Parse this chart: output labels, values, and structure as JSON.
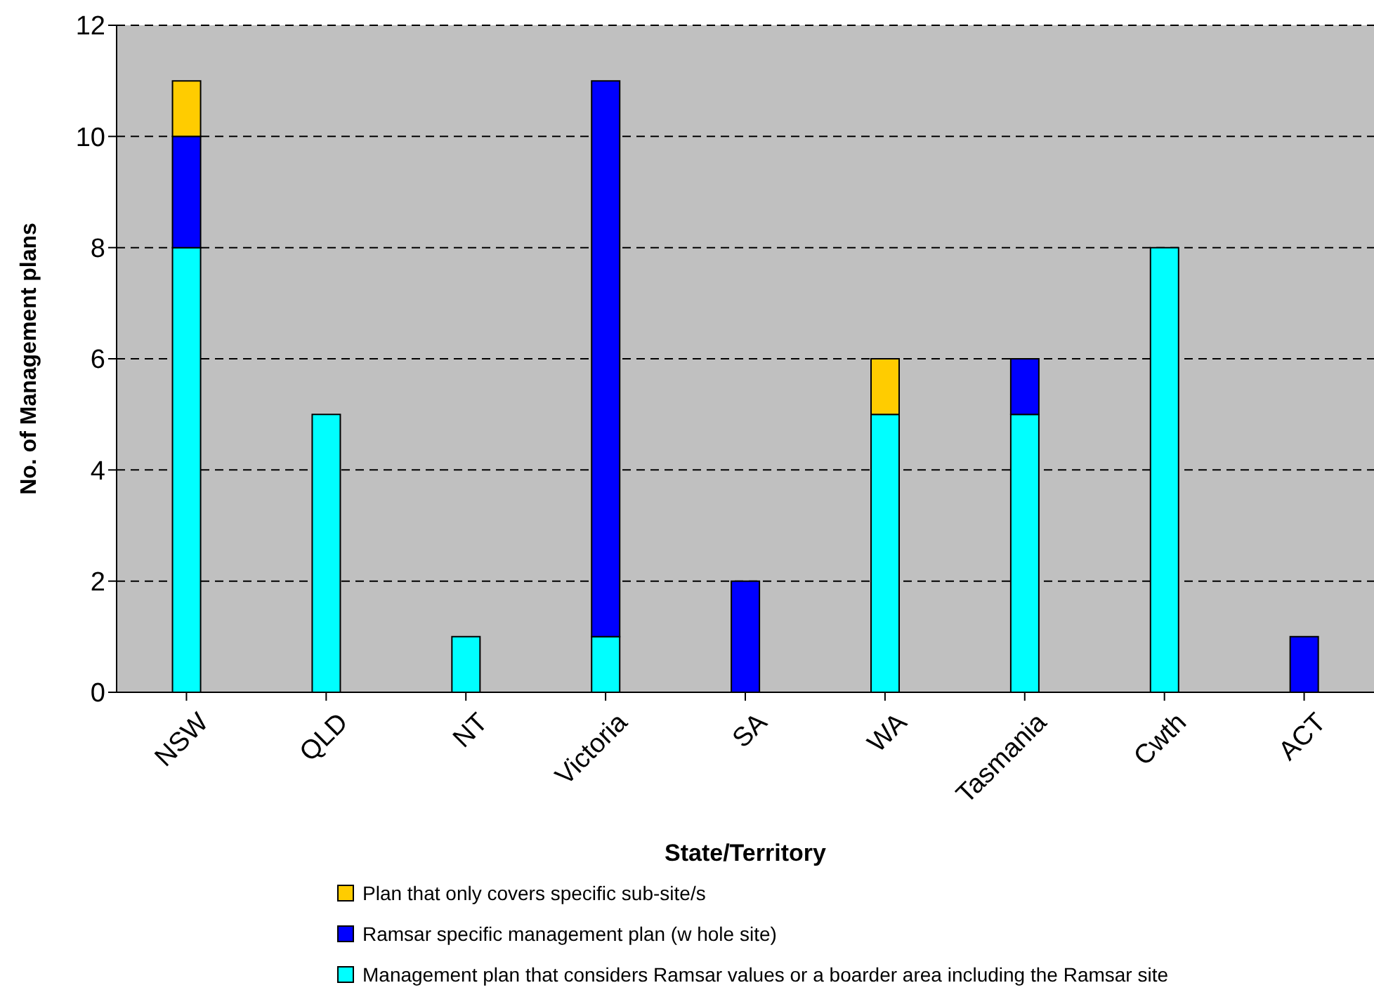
{
  "chart_data": {
    "type": "bar",
    "stacked": true,
    "xlabel": "State/Territory",
    "ylabel": "No. of Management plans",
    "categories": [
      "NSW",
      "QLD",
      "NT",
      "Victoria",
      "SA",
      "WA",
      "Tasmania",
      "Cwth",
      "ACT"
    ],
    "series": [
      {
        "name": "Management plan that considers Ramsar values or a boarder area including the Ramsar site",
        "color": "#00ffff",
        "values": [
          8,
          5,
          1,
          1,
          0,
          5,
          5,
          8,
          0
        ]
      },
      {
        "name": "Ramsar specific management plan (w hole site)",
        "color": "#0000ff",
        "values": [
          2,
          0,
          0,
          10,
          2,
          0,
          1,
          0,
          1
        ]
      },
      {
        "name": "Plan that only covers specific sub-site/s",
        "color": "#ffcc00",
        "values": [
          1,
          0,
          0,
          0,
          0,
          1,
          0,
          0,
          0
        ]
      }
    ],
    "ylim": [
      0,
      12
    ],
    "yticks": [
      0,
      2,
      4,
      6,
      8,
      10,
      12
    ],
    "grid": "y",
    "legend": "bottom"
  }
}
